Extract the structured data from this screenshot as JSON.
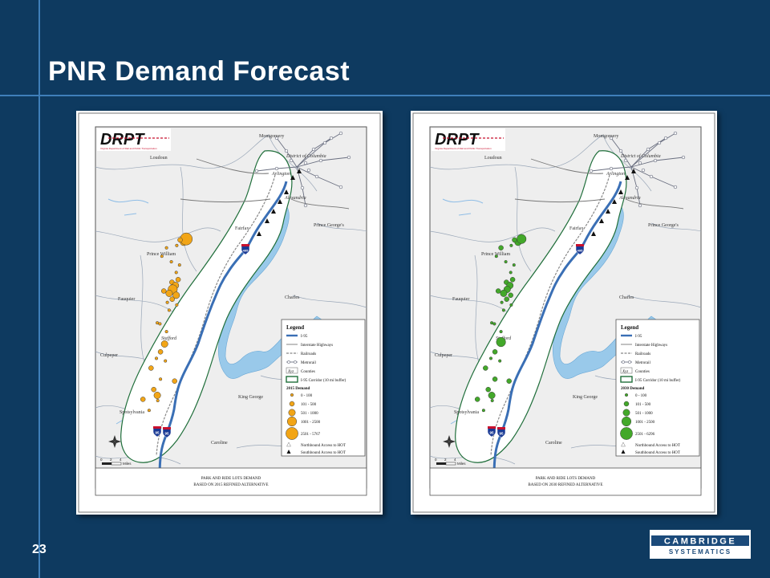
{
  "slide": {
    "title": "PNR Demand Forecast",
    "page_number": "23"
  },
  "logo": {
    "name": "CAMBRIDGE",
    "tagline": "SYSTEMATICS"
  },
  "maps": [
    {
      "id": "map-2015",
      "agency_logo": "DRPT",
      "agency_name": "Virginia Department of Rail and Public Transportation",
      "caption_line1": "PARK AND RIDE LOTS DEMAND",
      "caption_line2": "BASED ON 2015 REFINED ALTERNATIVE",
      "circle_color": "#f2a516",
      "place_labels": {
        "montgomery": "Montgomery",
        "dc": "District of Columbia",
        "loudoun": "Loudoun",
        "arlington": "Arlington",
        "alexandria": "Alexandria",
        "fairfax": "Fairfax",
        "prince_georges": "Prince George's",
        "prince_william": "Prince William",
        "fauquier": "Fauquier",
        "charles": "Charles",
        "stafford": "Stafford",
        "culpeper": "Culpeper",
        "king_george": "King George",
        "spotsylvania": "Spotsylvania",
        "caroline": "Caroline"
      },
      "shields": {
        "top": "495",
        "middle": "95",
        "bottom": "95"
      },
      "scale_bar": {
        "ticks": [
          "0",
          "2",
          "4"
        ],
        "unit": "Miles"
      },
      "legend": {
        "title": "Legend",
        "items": [
          "I-95",
          "Interstate Highways",
          "Railroads",
          "Metrorail",
          "Counties",
          "I-95 Corridor (10 mi buffer)"
        ],
        "counties_symbol": "Xyz",
        "demand_title": "2015 Demand",
        "classes": [
          "0 - 100",
          "101 - 500",
          "501 - 1000",
          "1001 - 2500",
          "2501 - 5767"
        ],
        "access_items": [
          "Northbound Access to HOT",
          "Southbound Access to HOT"
        ]
      },
      "points": [
        {
          "x": 0.325,
          "y": 0.355,
          "c": 2
        },
        {
          "x": 0.335,
          "y": 0.345,
          "c": 4
        },
        {
          "x": 0.312,
          "y": 0.348,
          "c": 1
        },
        {
          "x": 0.3,
          "y": 0.365,
          "c": 0
        },
        {
          "x": 0.262,
          "y": 0.372,
          "c": 0
        },
        {
          "x": 0.245,
          "y": 0.398,
          "c": 0
        },
        {
          "x": 0.28,
          "y": 0.415,
          "c": 0
        },
        {
          "x": 0.31,
          "y": 0.425,
          "c": 0
        },
        {
          "x": 0.298,
          "y": 0.448,
          "c": 0
        },
        {
          "x": 0.305,
          "y": 0.47,
          "c": 1
        },
        {
          "x": 0.282,
          "y": 0.478,
          "c": 1
        },
        {
          "x": 0.295,
          "y": 0.488,
          "c": 2
        },
        {
          "x": 0.285,
          "y": 0.5,
          "c": 3
        },
        {
          "x": 0.272,
          "y": 0.512,
          "c": 2
        },
        {
          "x": 0.298,
          "y": 0.518,
          "c": 2
        },
        {
          "x": 0.283,
          "y": 0.53,
          "c": 1
        },
        {
          "x": 0.265,
          "y": 0.54,
          "c": 0
        },
        {
          "x": 0.252,
          "y": 0.505,
          "c": 1
        },
        {
          "x": 0.3,
          "y": 0.548,
          "c": 0
        },
        {
          "x": 0.272,
          "y": 0.564,
          "c": 0
        },
        {
          "x": 0.228,
          "y": 0.603,
          "c": 0
        },
        {
          "x": 0.255,
          "y": 0.668,
          "c": 2
        },
        {
          "x": 0.24,
          "y": 0.692,
          "c": 1
        },
        {
          "x": 0.225,
          "y": 0.712,
          "c": 0
        },
        {
          "x": 0.258,
          "y": 0.72,
          "c": 0
        },
        {
          "x": 0.205,
          "y": 0.742,
          "c": 1
        },
        {
          "x": 0.24,
          "y": 0.776,
          "c": 0
        },
        {
          "x": 0.292,
          "y": 0.782,
          "c": 1
        },
        {
          "x": 0.215,
          "y": 0.808,
          "c": 1
        },
        {
          "x": 0.228,
          "y": 0.826,
          "c": 2
        },
        {
          "x": 0.175,
          "y": 0.838,
          "c": 1
        },
        {
          "x": 0.23,
          "y": 0.842,
          "c": 0
        },
        {
          "x": 0.198,
          "y": 0.872,
          "c": 0
        },
        {
          "x": 0.238,
          "y": 0.606,
          "c": 0
        },
        {
          "x": 0.262,
          "y": 0.63,
          "c": 0
        }
      ]
    },
    {
      "id": "map-2030",
      "agency_logo": "DRPT",
      "agency_name": "Virginia Department of Rail and Public Transportation",
      "caption_line1": "PARK AND RIDE LOTS DEMAND",
      "caption_line2": "BASED ON 2030 REFINED ALTERNATIVE",
      "circle_color": "#43a82a",
      "place_labels": {
        "montgomery": "Montgomery",
        "dc": "District of Columbia",
        "loudoun": "Loudoun",
        "arlington": "Arlington",
        "alexandria": "Alexandria",
        "fairfax": "Fairfax",
        "prince_georges": "Prince George's",
        "prince_william": "Prince William",
        "fauquier": "Fauquier",
        "charles": "Charles",
        "stafford": "Stafford",
        "culpeper": "Culpeper",
        "king_george": "King George",
        "spotsylvania": "Spotsylvania",
        "caroline": "Caroline"
      },
      "shields": {
        "top": "495",
        "middle": "95",
        "bottom": "95"
      },
      "scale_bar": {
        "ticks": [
          "0",
          "2",
          "4"
        ],
        "unit": "Miles"
      },
      "legend": {
        "title": "Legend",
        "items": [
          "I-95",
          "Interstate Highways",
          "Railroads",
          "Metrorail",
          "Counties",
          "I-95 Corridor (10 mi buffer)"
        ],
        "counties_symbol": "Xyz",
        "demand_title": "2030 Demand",
        "classes": [
          "0 - 100",
          "101 - 500",
          "501 - 1000",
          "1001 - 2500",
          "2501 - 6296"
        ],
        "access_items": [
          "Northbound Access to HOT",
          "Southbound Access to HOT"
        ]
      },
      "points": [
        {
          "x": 0.325,
          "y": 0.355,
          "c": 2
        },
        {
          "x": 0.338,
          "y": 0.345,
          "c": 3
        },
        {
          "x": 0.312,
          "y": 0.348,
          "c": 1
        },
        {
          "x": 0.3,
          "y": 0.365,
          "c": 0
        },
        {
          "x": 0.262,
          "y": 0.372,
          "c": 1
        },
        {
          "x": 0.245,
          "y": 0.398,
          "c": 0
        },
        {
          "x": 0.28,
          "y": 0.415,
          "c": 0
        },
        {
          "x": 0.31,
          "y": 0.425,
          "c": 0
        },
        {
          "x": 0.298,
          "y": 0.448,
          "c": 0
        },
        {
          "x": 0.305,
          "y": 0.47,
          "c": 1
        },
        {
          "x": 0.282,
          "y": 0.478,
          "c": 1
        },
        {
          "x": 0.295,
          "y": 0.488,
          "c": 2
        },
        {
          "x": 0.285,
          "y": 0.5,
          "c": 2
        },
        {
          "x": 0.272,
          "y": 0.512,
          "c": 2
        },
        {
          "x": 0.298,
          "y": 0.518,
          "c": 1
        },
        {
          "x": 0.283,
          "y": 0.53,
          "c": 1
        },
        {
          "x": 0.265,
          "y": 0.54,
          "c": 0
        },
        {
          "x": 0.252,
          "y": 0.505,
          "c": 1
        },
        {
          "x": 0.3,
          "y": 0.548,
          "c": 0
        },
        {
          "x": 0.272,
          "y": 0.564,
          "c": 0
        },
        {
          "x": 0.228,
          "y": 0.603,
          "c": 0
        },
        {
          "x": 0.262,
          "y": 0.662,
          "c": 3
        },
        {
          "x": 0.24,
          "y": 0.692,
          "c": 1
        },
        {
          "x": 0.225,
          "y": 0.712,
          "c": 0
        },
        {
          "x": 0.258,
          "y": 0.72,
          "c": 0
        },
        {
          "x": 0.205,
          "y": 0.742,
          "c": 1
        },
        {
          "x": 0.24,
          "y": 0.776,
          "c": 1
        },
        {
          "x": 0.292,
          "y": 0.782,
          "c": 1
        },
        {
          "x": 0.215,
          "y": 0.808,
          "c": 1
        },
        {
          "x": 0.228,
          "y": 0.826,
          "c": 2
        },
        {
          "x": 0.175,
          "y": 0.838,
          "c": 1
        },
        {
          "x": 0.23,
          "y": 0.842,
          "c": 0
        },
        {
          "x": 0.198,
          "y": 0.872,
          "c": 0
        },
        {
          "x": 0.238,
          "y": 0.606,
          "c": 0
        },
        {
          "x": 0.262,
          "y": 0.63,
          "c": 0
        }
      ]
    }
  ]
}
